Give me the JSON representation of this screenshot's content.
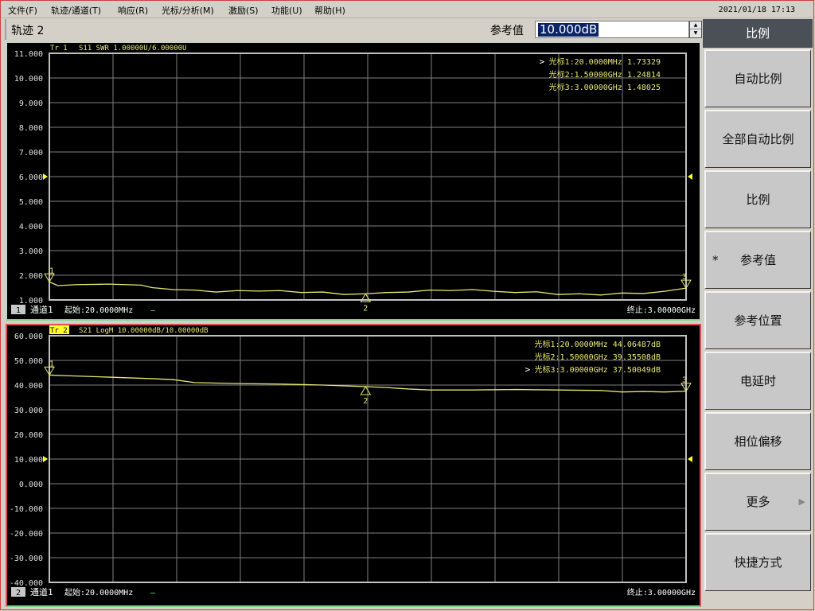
{
  "menu": [
    "文件(F)",
    "轨迹/通道(T)",
    "响应(R)",
    "光标/分析(M)",
    "激励(S)",
    "功能(U)",
    "帮助(H)"
  ],
  "clock": "2021/01/18 17:13",
  "toolbar": {
    "trace_title": "轨迹 2",
    "ref_label": "参考值",
    "ref_value": "10.000dB"
  },
  "softkeys": {
    "title": "比例",
    "items": [
      {
        "label": "自动比例"
      },
      {
        "label": "全部自动比例"
      },
      {
        "label": "比例"
      },
      {
        "label": "参考值",
        "selected": true,
        "mark": "*"
      },
      {
        "label": "参考位置"
      },
      {
        "label": "电延时"
      },
      {
        "label": "相位偏移"
      },
      {
        "label": "更多",
        "submenu": true,
        "arrow": "▶"
      },
      {
        "label": "快捷方式"
      }
    ]
  },
  "colors": {
    "trace": "#e8e870",
    "grid": "#808080",
    "frame": "#c0c0c0",
    "active_border": "#e05050",
    "text": "#ffffff"
  },
  "chart_data": [
    {
      "type": "line",
      "trace_label": "Tr 1",
      "header": "S11 SWR 1.00000U/6.00000U",
      "active": false,
      "ylim": [
        1,
        11
      ],
      "yticks": [
        "11.000",
        "10.000",
        "9.000",
        "8.000",
        "7.000",
        "6.000",
        "5.000",
        "4.000",
        "3.000",
        "2.000",
        "1.000"
      ],
      "reference_value": 6,
      "xlim": [
        20,
        3000
      ],
      "grid": true,
      "channel_num": "1",
      "channel": "通道1",
      "start": "起始:20.0000MHz",
      "start_suffix": "—",
      "stop": "终止:3.00000GHz",
      "markers": [
        {
          "id": "1",
          "text": "光标1:20.0000MHz 1.73329",
          "x": 20,
          "y": 1.73329,
          "active": true
        },
        {
          "id": "2",
          "text": "光标2:1.50000GHz 1.24814",
          "x": 1500,
          "y": 1.24814
        },
        {
          "id": "3",
          "text": "光标3:3.00000GHz 1.48025",
          "x": 3000,
          "y": 1.48025
        }
      ],
      "series": [
        {
          "x": [
            20,
            60,
            150,
            300,
            450,
            500,
            600,
            700,
            800,
            900,
            1000,
            1100,
            1200,
            1300,
            1400,
            1500,
            1600,
            1700,
            1800,
            1900,
            2000,
            2100,
            2200,
            2300,
            2400,
            2500,
            2600,
            2700,
            2800,
            2900,
            3000
          ],
          "y": [
            1.73,
            1.58,
            1.62,
            1.64,
            1.6,
            1.5,
            1.42,
            1.4,
            1.32,
            1.38,
            1.36,
            1.38,
            1.3,
            1.32,
            1.22,
            1.25,
            1.3,
            1.32,
            1.4,
            1.38,
            1.42,
            1.35,
            1.3,
            1.33,
            1.22,
            1.25,
            1.2,
            1.28,
            1.26,
            1.35,
            1.48
          ]
        }
      ]
    },
    {
      "type": "line",
      "trace_label": "Tr 2",
      "header": "S21 LogM 10.00000dB/10.00000dB",
      "active": true,
      "ylim": [
        -40,
        60
      ],
      "yticks": [
        "60.000",
        "50.000",
        "40.000",
        "30.000",
        "20.000",
        "10.000",
        "0.000",
        "-10.000",
        "-20.000",
        "-30.000",
        "-40.000"
      ],
      "reference_value": 10,
      "xlim": [
        20,
        3000
      ],
      "grid": true,
      "channel_num": "2",
      "channel": "通道1",
      "start": "起始:20.0000MHz",
      "start_suffix": "—",
      "stop": "终止:3.00000GHz",
      "markers": [
        {
          "id": "1",
          "text": "光标1:20.0000MHz 44.06487dB",
          "x": 20,
          "y": 44.06487
        },
        {
          "id": "2",
          "text": "光标2:1.50000GHz 39.35508dB",
          "x": 1500,
          "y": 39.35508
        },
        {
          "id": "3",
          "text": "光标3:3.00000GHz 37.50049dB",
          "x": 3000,
          "y": 37.50049,
          "active": true
        }
      ],
      "series": [
        {
          "x": [
            20,
            100,
            300,
            500,
            600,
            700,
            900,
            1100,
            1300,
            1500,
            1600,
            1700,
            1800,
            2000,
            2200,
            2400,
            2600,
            2700,
            2800,
            2900,
            3000
          ],
          "y": [
            44.06,
            43.8,
            43.2,
            42.6,
            42.2,
            41,
            40.6,
            40.4,
            40,
            39.36,
            39,
            38.4,
            38,
            38,
            38.2,
            38,
            37.8,
            37.2,
            37.4,
            37.2,
            37.5
          ]
        }
      ]
    }
  ]
}
